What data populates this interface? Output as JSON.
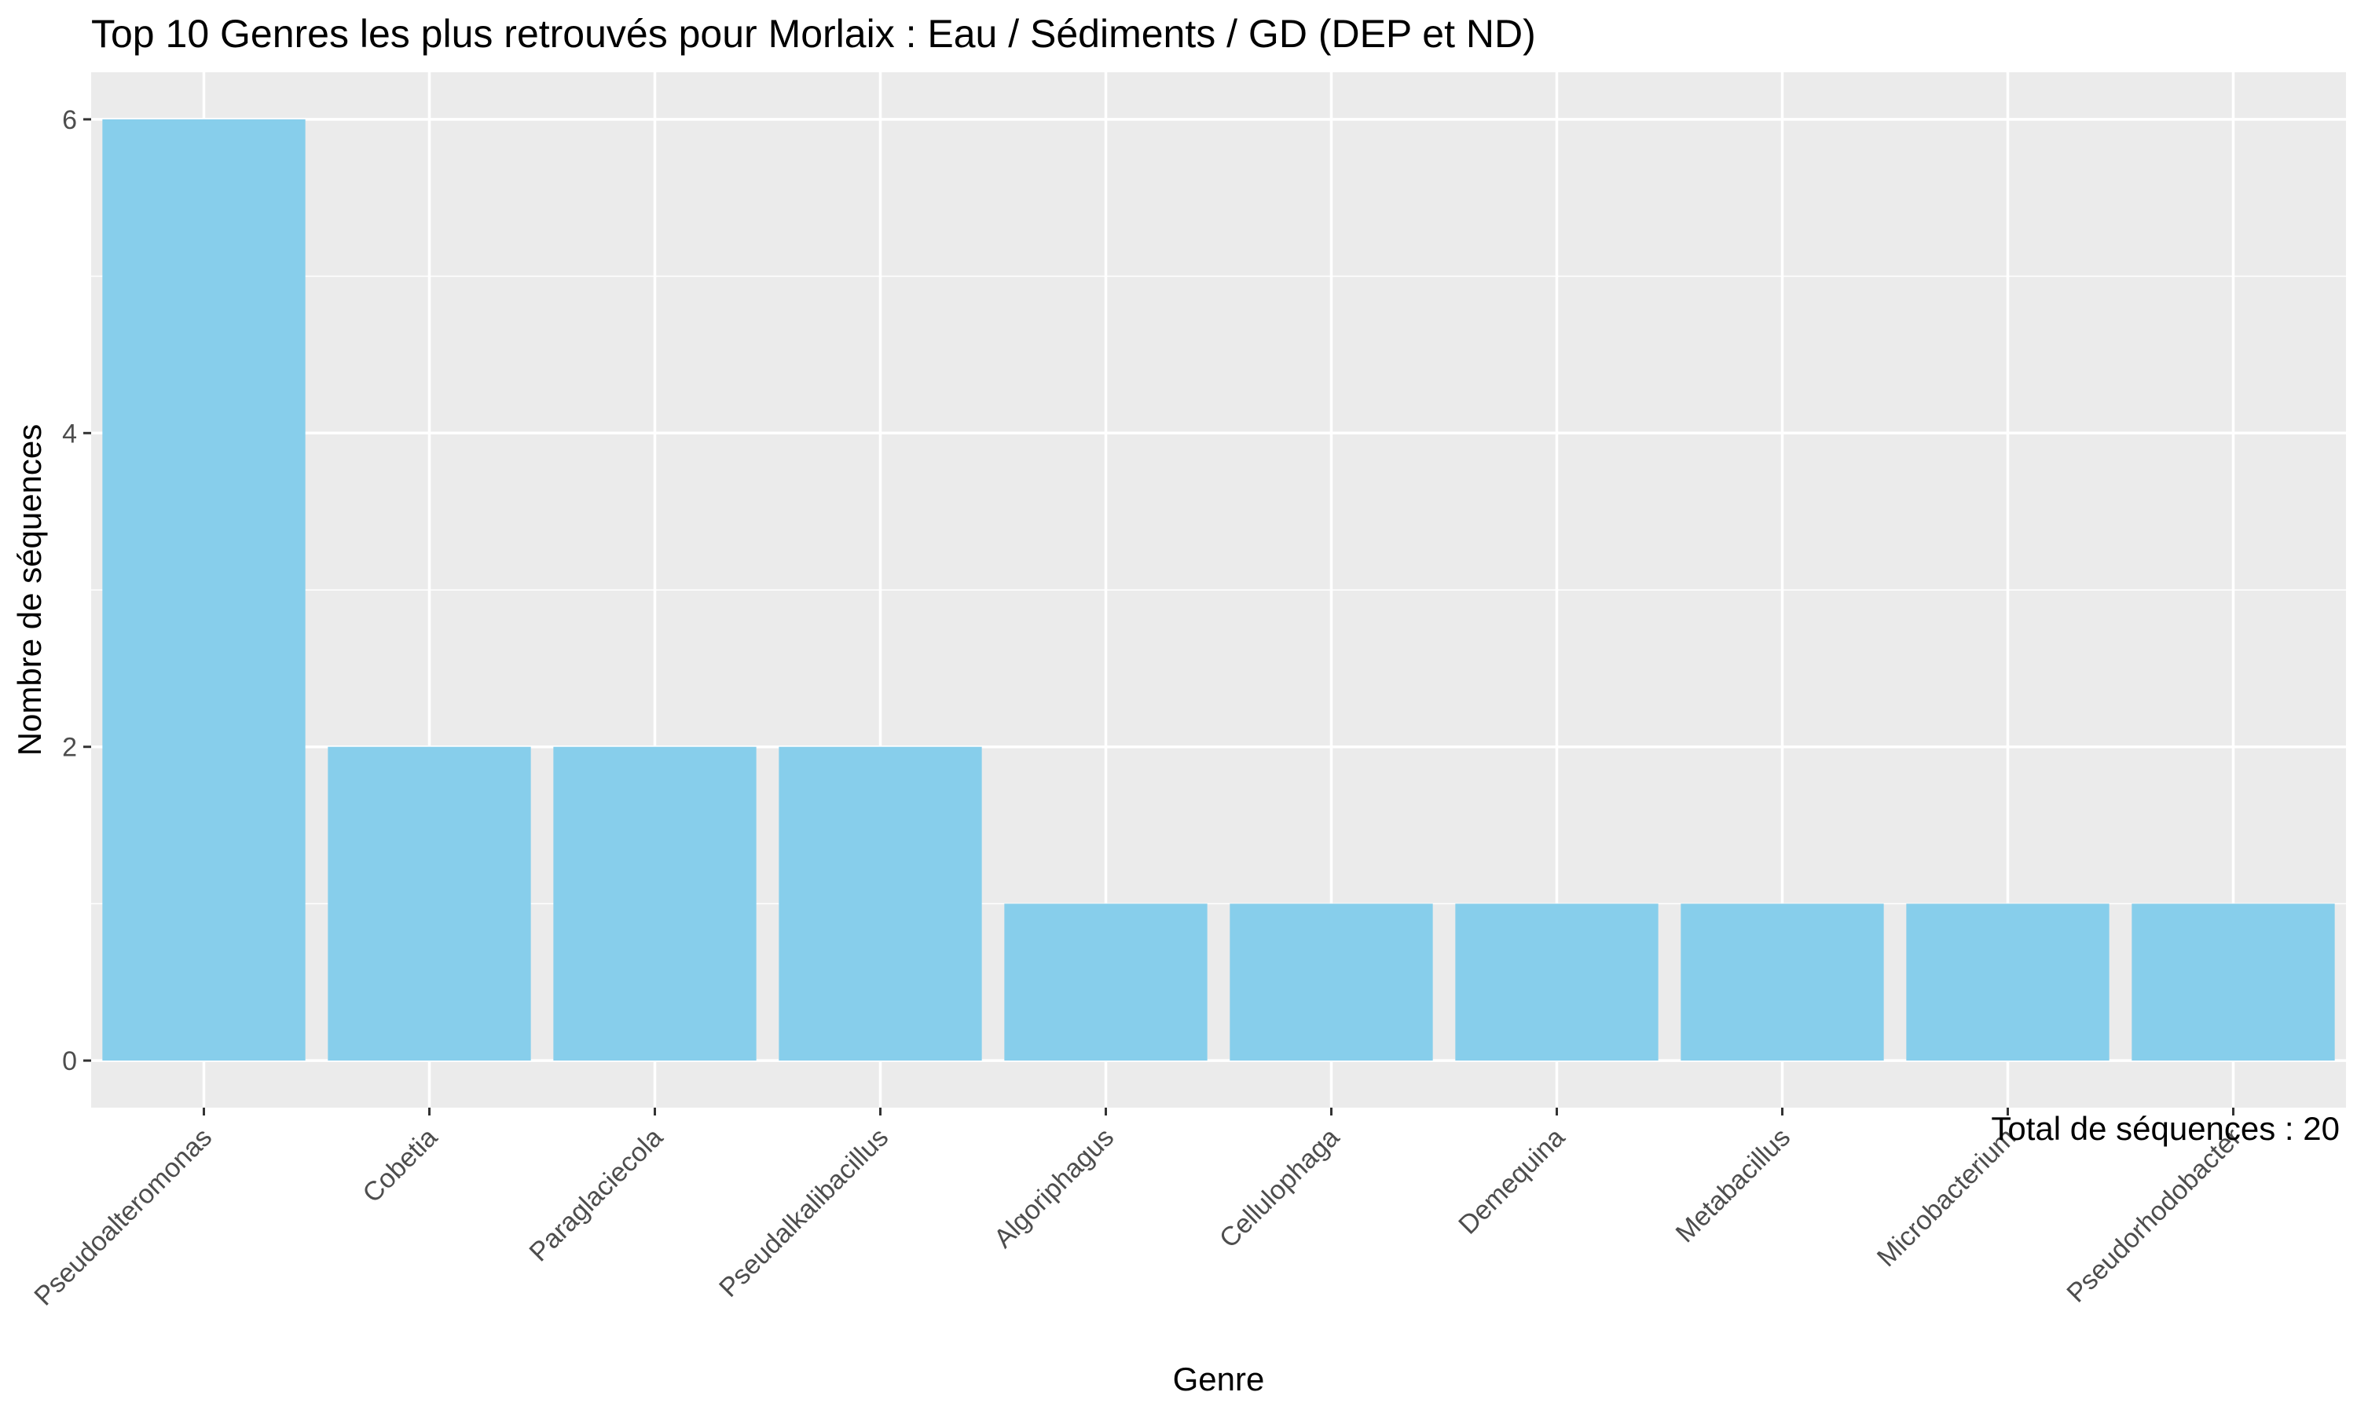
{
  "chart_data": {
    "type": "bar",
    "title": "Top 10 Genres les plus retrouvés pour Morlaix : Eau / Sédiments / GD (DEP et ND)",
    "xlabel": "Genre",
    "ylabel": "Nombre de séquences",
    "categories": [
      "Pseudoalteromonas",
      "Cobetia",
      "Paraglaciecola",
      "Pseudalkalibacillus",
      "Algoriphagus",
      "Cellulophaga",
      "Demequina",
      "Metabacillus",
      "Microbacterium",
      "Pseudorhodobacter"
    ],
    "values": [
      6,
      2,
      2,
      2,
      1,
      1,
      1,
      1,
      1,
      1
    ],
    "ylim": [
      -0.3,
      6.3
    ],
    "yticks": [
      "0",
      "2",
      "4",
      "6"
    ],
    "grid": true,
    "legend": "none",
    "annotation": "Total de séquences : 20",
    "colors": {
      "bar": "#87CEEB",
      "panel": "#EBEBEB",
      "grid": "#FFFFFF",
      "tick_text": "#4D4D4D",
      "tick_mark": "#333333"
    }
  }
}
